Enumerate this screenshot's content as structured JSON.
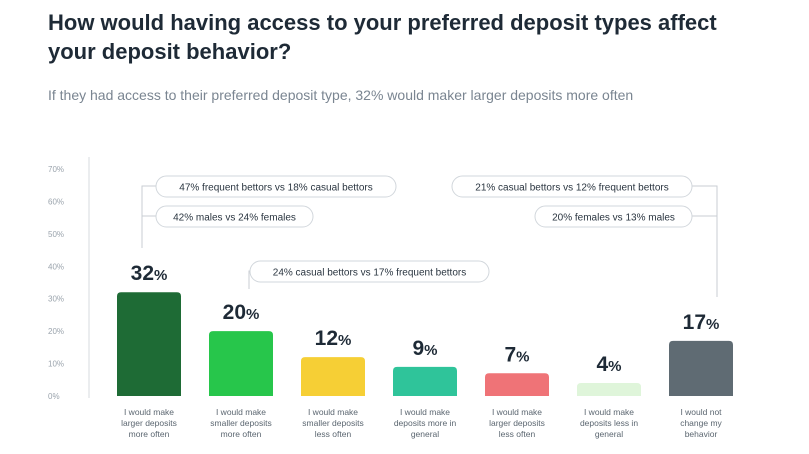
{
  "title": "How would having access to your preferred deposit types affect your deposit behavior?",
  "subtitle": "If they had access to their preferred deposit type, 32% would maker larger deposits more often",
  "chart_data": {
    "type": "bar",
    "title": "How would having access to your preferred deposit types affect your deposit behavior?",
    "subtitle": "If they had access to their preferred deposit type, 32% would maker larger deposits more often",
    "y_ticks": [
      "0%",
      "10%",
      "20%",
      "30%",
      "40%",
      "50%",
      "60%",
      "70%"
    ],
    "ylim": [
      0,
      70
    ],
    "grid": false,
    "categories": [
      [
        "I would make",
        "larger deposits",
        "more often"
      ],
      [
        "I would make",
        "smaller deposits",
        "more often"
      ],
      [
        "I would make",
        "smaller deposits",
        "less often"
      ],
      [
        "I would make",
        "deposits more in",
        "general"
      ],
      [
        "I would make",
        "larger deposits",
        "less often"
      ],
      [
        "I would make",
        "deposits less in",
        "general"
      ],
      [
        "I would not",
        "change my",
        "behavior"
      ]
    ],
    "values": [
      32,
      20,
      12,
      9,
      7,
      4,
      17
    ],
    "value_labels": [
      "32",
      "20",
      "12",
      "9",
      "7",
      "4",
      "17"
    ],
    "value_suffix": "%",
    "colors": [
      "#1e6b35",
      "#27c64b",
      "#f6cf35",
      "#2fc49a",
      "#ef7377",
      "#dff5da",
      "#5f6b73"
    ],
    "annotations": [
      {
        "bar": 0,
        "text": "47% frequent bettors vs 18% casual bettors"
      },
      {
        "bar": 0,
        "text": "42% males vs 24% females"
      },
      {
        "bar": 1,
        "text": "24% casual bettors vs 17% frequent bettors"
      },
      {
        "bar": 6,
        "text": "21% casual bettors vs 12% frequent bettors"
      },
      {
        "bar": 6,
        "text": "20% females vs 13% males"
      }
    ]
  }
}
